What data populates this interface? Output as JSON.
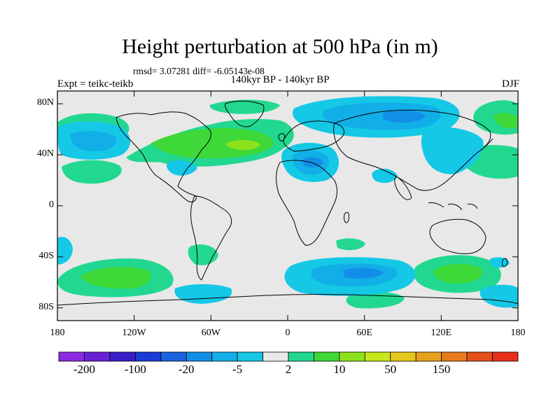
{
  "title": "Height perturbation at 500 hPa (in m)",
  "stats": "rmsd= 3.07281 diff= -6.05143e-08",
  "period": "140kyr BP - 140kyr BP",
  "experiment": "Expt = teikc-teikb",
  "season": "DJF",
  "map": {
    "projection": "cylindrical equidistant",
    "lon_range": [
      -180,
      180
    ],
    "lat_range": [
      -90,
      90
    ],
    "lat_ticks": [
      {
        "lat": 80,
        "label": "80N"
      },
      {
        "lat": 40,
        "label": "40N"
      },
      {
        "lat": 0,
        "label": "0"
      },
      {
        "lat": -40,
        "label": "40S"
      },
      {
        "lat": -80,
        "label": "80S"
      }
    ],
    "lon_ticks": [
      {
        "lon": -180,
        "label": "180"
      },
      {
        "lon": -120,
        "label": "120W"
      },
      {
        "lon": -60,
        "label": "60W"
      },
      {
        "lon": 0,
        "label": "0"
      },
      {
        "lon": 60,
        "label": "60E"
      },
      {
        "lon": 120,
        "label": "120E"
      },
      {
        "lon": 180,
        "label": "180"
      }
    ]
  },
  "colorbar": {
    "colors": [
      "#8a2be2",
      "#6a1fd6",
      "#3a1ec8",
      "#1c3ad6",
      "#1a62e0",
      "#128ee8",
      "#12aee8",
      "#14c8e6",
      "#e8e8e8",
      "#22d890",
      "#3ed838",
      "#8ee21c",
      "#c8e61c",
      "#e6c81c",
      "#e6a01c",
      "#e67a1c",
      "#e64e1c",
      "#e6301c"
    ],
    "labels": [
      {
        "index": 1,
        "text": "-200"
      },
      {
        "index": 3,
        "text": "-100"
      },
      {
        "index": 5,
        "text": "-20"
      },
      {
        "index": 7,
        "text": "-5"
      },
      {
        "index": 9,
        "text": "2"
      },
      {
        "index": 11,
        "text": "10"
      },
      {
        "index": 13,
        "text": "50"
      },
      {
        "index": 15,
        "text": "150"
      }
    ]
  }
}
